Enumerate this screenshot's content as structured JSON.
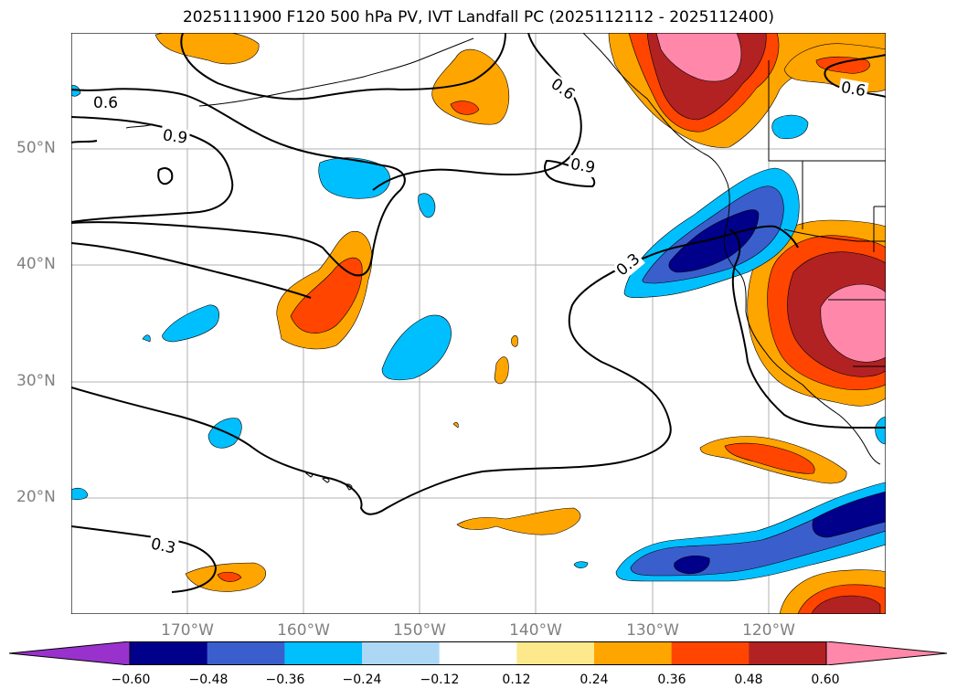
{
  "title": "2025111900 F120 500 hPa PV, IVT Landfall PC (2025112112 - 2025112400)",
  "latitude_labels": [
    "50°N",
    "40°N",
    "30°N",
    "20°N"
  ],
  "longitude_labels": [
    "170°W",
    "160°W",
    "150°W",
    "140°W",
    "130°W",
    "120°W"
  ],
  "contour_labels": [
    "0.6",
    "0.9",
    "0.6",
    "0.9",
    "0.3",
    "0.6",
    "0.3"
  ],
  "colorbar": {
    "ticks": [
      "−0.60",
      "−0.48",
      "−0.36",
      "−0.24",
      "−0.12",
      "0.12",
      "0.24",
      "0.36",
      "0.48",
      "0.60"
    ],
    "colors": [
      "#9932cc",
      "#00008b",
      "#3a5fcd",
      "#00bfff",
      "#add8f5",
      "#ffffff",
      "#fde98b",
      "#ffa500",
      "#ff4500",
      "#b22222",
      "#ff88aa"
    ]
  },
  "colors": {
    "pos1": "#ffa500",
    "pos2": "#ff4500",
    "pos3": "#b22222",
    "pos4": "#ff88aa",
    "neg1": "#00bfff",
    "neg2": "#3a5fcd",
    "neg3": "#00008b"
  }
}
